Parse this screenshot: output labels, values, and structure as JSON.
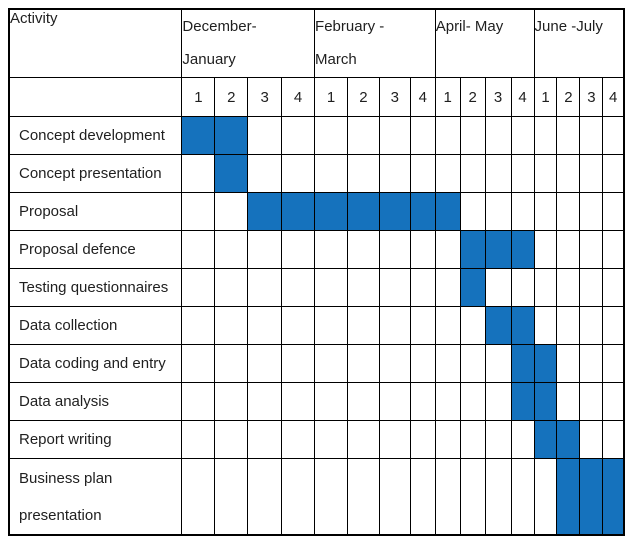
{
  "chart_data": {
    "type": "table",
    "subtype": "gantt",
    "corner_header": "Activity",
    "bar_color": "#1572BD",
    "month_groups": [
      {
        "line1": "December-",
        "line2": "January",
        "weeks": [
          "1",
          "2",
          "3",
          "4"
        ]
      },
      {
        "line1": "February -",
        "line2": "March",
        "weeks": [
          "1",
          "2",
          "3",
          "4"
        ]
      },
      {
        "line1": "April- May",
        "line2": "",
        "weeks": [
          "1",
          "2",
          "3",
          "4"
        ]
      },
      {
        "line1": "June -July",
        "line2": "",
        "weeks": [
          "1",
          "2",
          "3",
          "4"
        ]
      }
    ],
    "week_numbers": [
      "1",
      "2",
      "3",
      "4",
      "1",
      "2",
      "3",
      "4",
      "1",
      "2",
      "3",
      "4",
      "1",
      "2",
      "3",
      "4"
    ],
    "rows": [
      {
        "activity": "Concept development",
        "label_lines": [
          "Concept development"
        ],
        "filled_weeks": [
          0,
          1
        ]
      },
      {
        "activity": "Concept presentation",
        "label_lines": [
          "Concept presentation"
        ],
        "filled_weeks": [
          1
        ]
      },
      {
        "activity": "Proposal",
        "label_lines": [
          "Proposal"
        ],
        "filled_weeks": [
          2,
          3,
          4,
          5,
          6,
          7,
          8
        ]
      },
      {
        "activity": "Proposal defence",
        "label_lines": [
          "Proposal defence"
        ],
        "filled_weeks": [
          9,
          10,
          11
        ]
      },
      {
        "activity": "Testing questionnaires",
        "label_lines": [
          "Testing questionnaires"
        ],
        "filled_weeks": [
          9
        ]
      },
      {
        "activity": "Data collection",
        "label_lines": [
          "Data collection"
        ],
        "filled_weeks": [
          10,
          11
        ]
      },
      {
        "activity": "Data coding and entry",
        "label_lines": [
          "Data coding and entry"
        ],
        "filled_weeks": [
          11,
          12
        ]
      },
      {
        "activity": "Data analysis",
        "label_lines": [
          "Data analysis"
        ],
        "filled_weeks": [
          11,
          12
        ]
      },
      {
        "activity": "Report writing",
        "label_lines": [
          "Report writing"
        ],
        "filled_weeks": [
          12,
          13
        ]
      },
      {
        "activity": "Business plan presentation",
        "label_lines": [
          "Business plan",
          "presentation"
        ],
        "filled_weeks": [
          13,
          14,
          15
        ]
      }
    ]
  }
}
